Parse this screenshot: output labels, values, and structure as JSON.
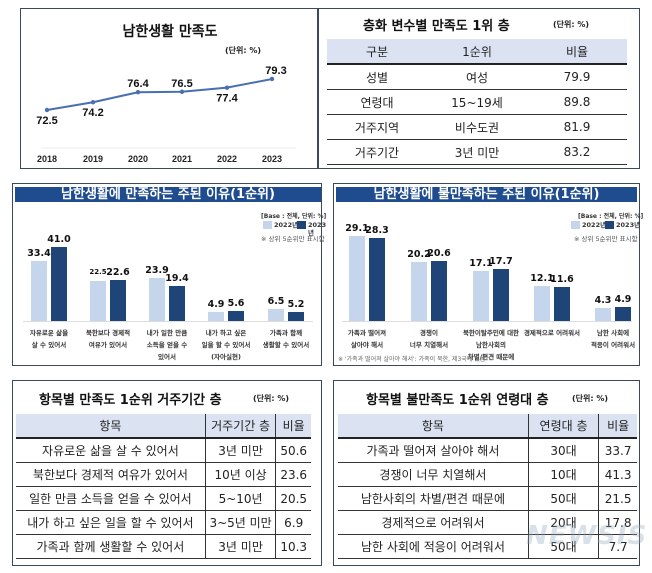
{
  "chart_data": [
    {
      "type": "line",
      "title": "남한생활 만족도",
      "unit": "(단위:  %)",
      "categories": [
        "2018",
        "2019",
        "2020",
        "2021",
        "2022",
        "2023"
      ],
      "values": [
        72.5,
        74.2,
        76.4,
        76.5,
        77.4,
        79.3
      ],
      "color": "#4a6fb0",
      "grid": false
    },
    {
      "type": "bar",
      "title": "남한생활에 만족하는 주된 이유(1순위)",
      "base_note": "[Base : 전체, 단위: %]",
      "note": "※ 상위 5순위만 표시함",
      "categories": [
        "자유로운 삶을|살 수 있어서",
        "북한보다 경제적|여유가 있어서",
        "내가 일한 만큼|소득을 얻을 수|있어서",
        "내가 하고 싶은|일을 할 수 있어서|(자아실현)",
        "가족과 함께|생활할 수 있어서"
      ],
      "series": [
        {
          "name": "2022년",
          "values": [
            33.4,
            22.5,
            23.9,
            4.9,
            6.5
          ],
          "color": "#c5d5ec"
        },
        {
          "name": "2023년",
          "values": [
            41.0,
            22.6,
            19.4,
            5.6,
            5.2
          ],
          "color": "#1f4477"
        }
      ],
      "legend": "top-right"
    },
    {
      "type": "bar",
      "title": "남한생활에 불만족하는 주된 이유(1순위)",
      "base_note": "[Base : 전체, 단위: %]",
      "note": "※ 상위 5순위만 표시함",
      "footnote": "※ '가족과 떨어져 살아야 해서': 가족이 북한, 제3국에 있음",
      "categories": [
        "가족과 떨어져|살아야 해서",
        "경쟁이|너무 치열해서",
        "북한이탈주민에 대한|남한사회의|차별/편견 때문에",
        "경제적으로 어려워서",
        "남한 사회에|적응이 어려워서"
      ],
      "series": [
        {
          "name": "2022년",
          "values": [
            29.1,
            20.2,
            17.1,
            12.1,
            4.3
          ],
          "color": "#c5d5ec"
        },
        {
          "name": "2023년",
          "values": [
            28.3,
            20.6,
            17.7,
            11.6,
            4.9
          ],
          "color": "#1f4477"
        }
      ],
      "legend": "top-right"
    }
  ],
  "table1": {
    "title": "층화 변수별 만족도 1위 층",
    "unit": "(단위:  %)",
    "headers": [
      "구분",
      "1순위",
      "비율"
    ],
    "rows": [
      [
        "성별",
        "여성",
        "79.9"
      ],
      [
        "연령대",
        "15~19세",
        "89.8"
      ],
      [
        "거주지역",
        "비수도권",
        "81.9"
      ],
      [
        "거주기간",
        "3년  미만",
        "83.2"
      ]
    ]
  },
  "table2": {
    "title": "항목별 만족도 1순위 거주기간 층",
    "unit": "(단위: %)",
    "headers": [
      "항목",
      "거주기간 층",
      "비율"
    ],
    "rows": [
      [
        "자유로운 삶을 살 수 있어서",
        "3년 미만",
        "50.6"
      ],
      [
        "북한보다 경제적 여유가 있어서",
        "10년 이상",
        "23.6"
      ],
      [
        "일한 만큼 소득을 얻을 수 있어서",
        "5~10년",
        "20.5"
      ],
      [
        "내가 하고 싶은 일을 할 수 있어서",
        "3~5년 미만",
        "6.9"
      ],
      [
        "가족과 함께 생활할 수 있어서",
        "3년 미만",
        "10.3"
      ]
    ]
  },
  "table3": {
    "title": "항목별 불만족도 1순위 연령대 층",
    "unit": "(단위: %)",
    "headers": [
      "항목",
      "연령대 층",
      "비율"
    ],
    "rows": [
      [
        "가족과 떨어져 살아야 해서",
        "30대",
        "33.7"
      ],
      [
        "경쟁이 너무 치열해서",
        "10대",
        "41.3"
      ],
      [
        "남한사회의 차별/편견 때문에",
        "50대",
        "21.5"
      ],
      [
        "경제적으로 어려워서",
        "20대",
        "17.8"
      ],
      [
        "남한 사회에 적응이 어려워서",
        "50대",
        "7.7"
      ]
    ]
  },
  "watermark": "NEWSIS"
}
